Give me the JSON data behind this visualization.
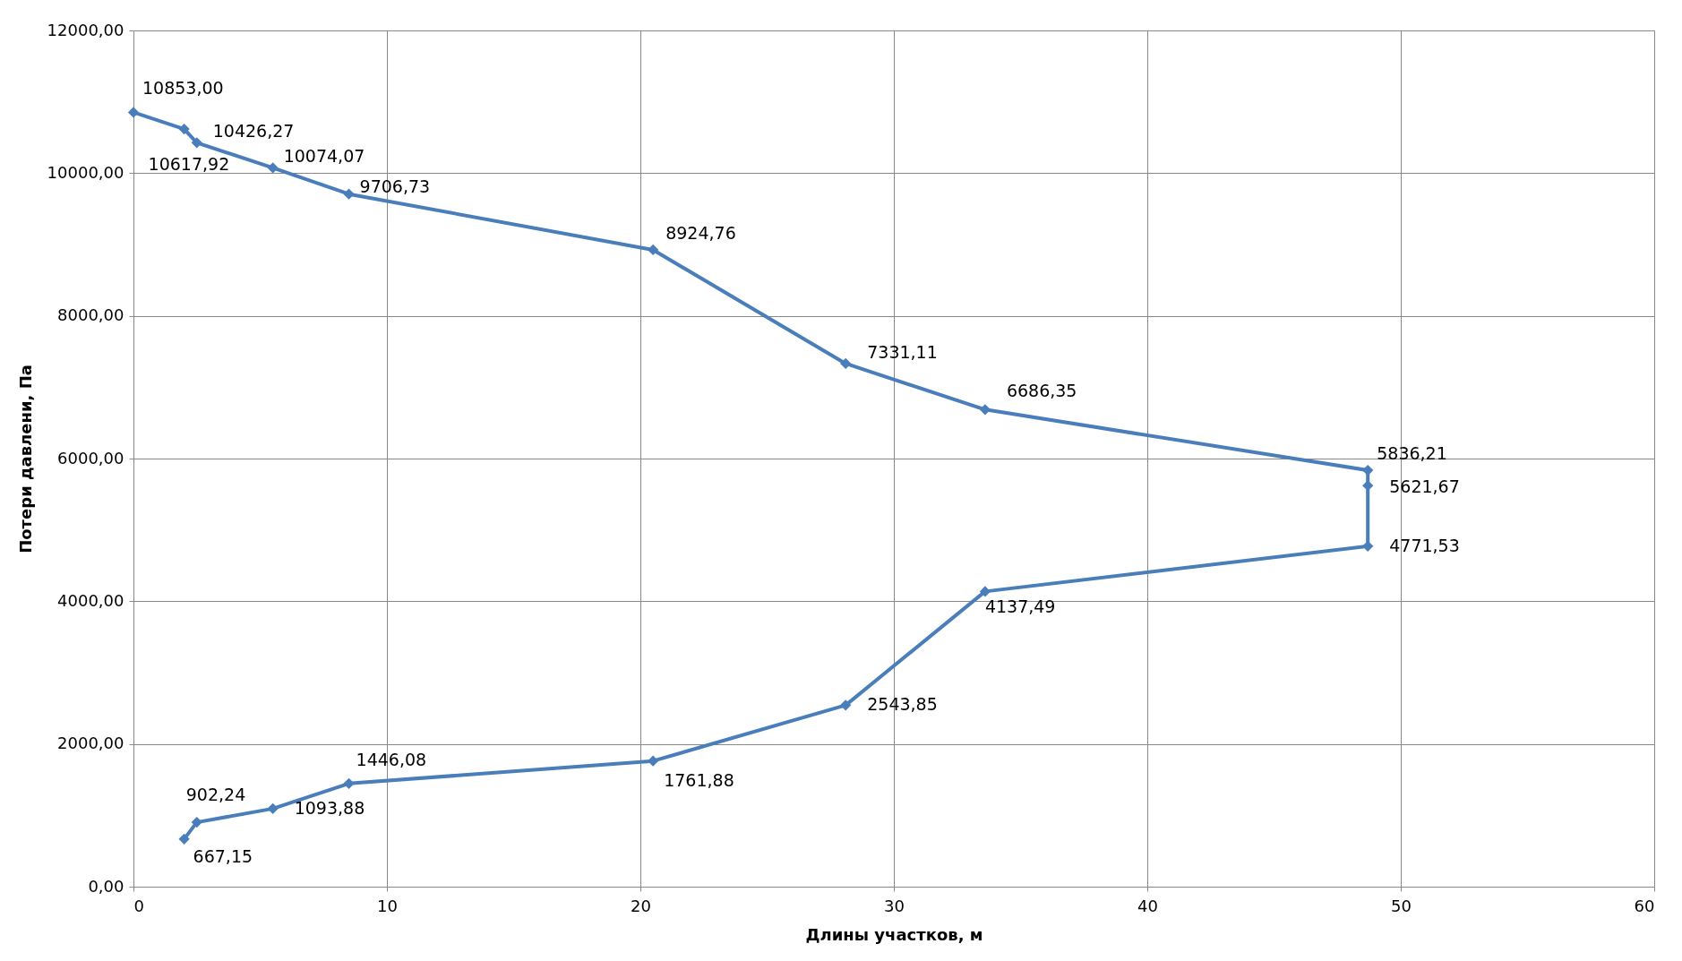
{
  "chart_data": {
    "type": "line",
    "xlabel": "Длины участков, м",
    "ylabel": "Потери давлени, Па",
    "series": [
      {
        "color": "#4a7ebb",
        "x": [
          0,
          2,
          2.5,
          5.5,
          8.5,
          20.5,
          28.1,
          33.6,
          48.7,
          48.7,
          48.7,
          33.6,
          28.1,
          20.5,
          8.5,
          5.5,
          2.5,
          2
        ],
        "values": [
          10853.0,
          10617.92,
          10426.27,
          10074.07,
          9706.73,
          8924.76,
          7331.11,
          6686.35,
          5836.21,
          5621.67,
          4771.53,
          4137.49,
          2543.85,
          1761.88,
          1446.08,
          1093.88,
          902.24,
          667.15
        ],
        "value_labels": [
          "10853,00",
          "10617,92",
          "10426,27",
          "10074,07",
          "9706,73",
          "8924,76",
          "7331,11",
          "6686,35",
          "5836,21",
          "5621,67",
          "4771,53",
          "4137,49",
          "2543,85",
          "1761,88",
          "1446,08",
          "1093,88",
          "902,24",
          "667,15"
        ]
      }
    ],
    "xlim": [
      0,
      60
    ],
    "xticks": [
      0,
      10,
      20,
      30,
      40,
      50,
      60
    ],
    "ylim": [
      0,
      12000
    ],
    "yticks": [
      {
        "value": 0,
        "label": "0,00"
      },
      {
        "value": 2000,
        "label": "2000,00"
      },
      {
        "value": 4000,
        "label": "4000,00"
      },
      {
        "value": 6000,
        "label": "6000,00"
      },
      {
        "value": 8000,
        "label": "8000,00"
      },
      {
        "value": 10000,
        "label": "10000,00"
      },
      {
        "value": 12000,
        "label": "12000,00"
      }
    ],
    "grid": true,
    "marker": "diamond",
    "line_style": "solid"
  }
}
